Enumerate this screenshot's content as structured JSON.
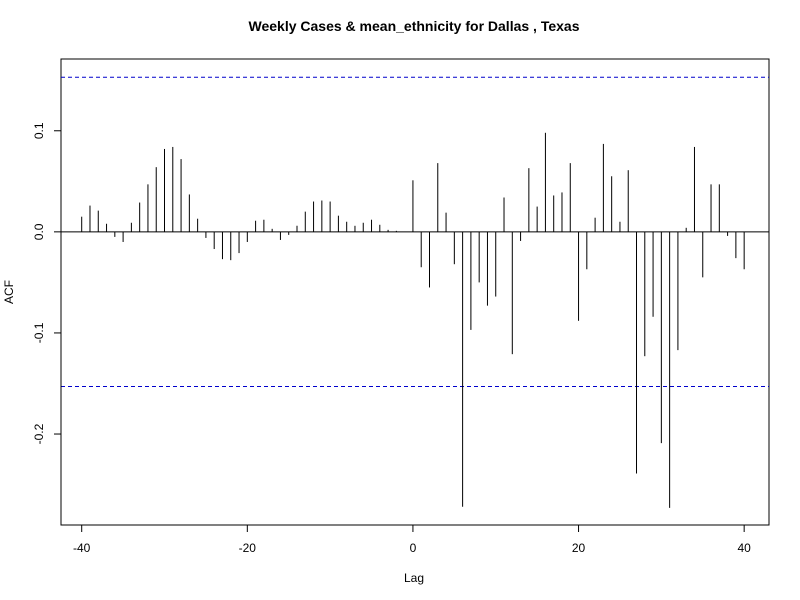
{
  "chart_data": {
    "type": "bar",
    "title": "Weekly Cases & mean_ethnicity for Dallas , Texas",
    "xlabel": "Lag",
    "ylabel": "ACF",
    "xlim": [
      -42.5,
      43
    ],
    "ylim": [
      -0.29,
      0.171
    ],
    "x_ticks": [
      -40,
      -20,
      0,
      20,
      40
    ],
    "y_ticks": [
      -0.2,
      -0.1,
      0.0,
      0.1
    ],
    "y_tick_labels": [
      "-0.2",
      "-0.1",
      "0.0",
      "0.1"
    ],
    "confidence_bounds": [
      0.153,
      -0.153
    ],
    "confidence_color": "#0000cc",
    "lags": [
      -40,
      -39,
      -38,
      -37,
      -36,
      -35,
      -34,
      -33,
      -32,
      -31,
      -30,
      -29,
      -28,
      -27,
      -26,
      -25,
      -24,
      -23,
      -22,
      -21,
      -20,
      -19,
      -18,
      -17,
      -16,
      -15,
      -14,
      -13,
      -12,
      -11,
      -10,
      -9,
      -8,
      -7,
      -6,
      -5,
      -4,
      -3,
      -2,
      -1,
      0,
      1,
      2,
      3,
      4,
      5,
      6,
      7,
      8,
      9,
      10,
      11,
      12,
      13,
      14,
      15,
      16,
      17,
      18,
      19,
      20,
      21,
      22,
      23,
      24,
      25,
      26,
      27,
      28,
      29,
      30,
      31,
      32,
      33,
      34,
      35,
      36,
      37,
      38,
      39,
      40
    ],
    "acf": [
      0.015,
      0.026,
      0.021,
      0.008,
      -0.005,
      -0.01,
      0.009,
      0.029,
      0.047,
      0.064,
      0.082,
      0.084,
      0.072,
      0.037,
      0.013,
      -0.006,
      -0.017,
      -0.027,
      -0.028,
      -0.021,
      -0.01,
      0.011,
      0.012,
      0.003,
      -0.008,
      -0.003,
      0.006,
      0.02,
      0.03,
      0.031,
      0.03,
      0.016,
      0.01,
      0.006,
      0.009,
      0.012,
      0.007,
      0.002,
      0.001,
      0.0,
      0.051,
      -0.035,
      -0.055,
      0.068,
      0.019,
      -0.032,
      -0.272,
      -0.097,
      -0.05,
      -0.073,
      -0.064,
      0.034,
      -0.121,
      -0.009,
      0.063,
      0.025,
      0.098,
      0.036,
      0.039,
      0.068,
      -0.088,
      -0.037,
      0.014,
      0.087,
      0.055,
      0.01,
      0.061,
      -0.239,
      -0.123,
      -0.084,
      -0.209,
      -0.273,
      -0.117,
      0.004,
      0.084,
      -0.045,
      0.047,
      0.047,
      -0.004,
      -0.026,
      -0.037
    ]
  }
}
